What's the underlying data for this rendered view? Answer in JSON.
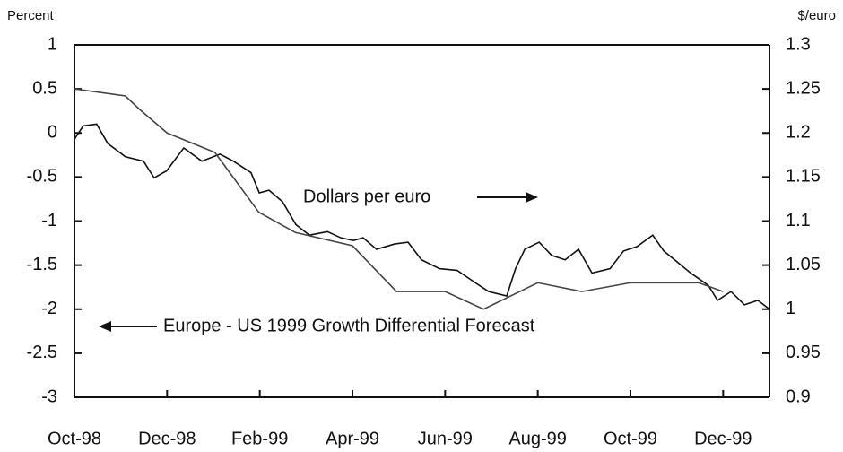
{
  "chart_data": {
    "type": "line",
    "y_label": "Percent",
    "y2_label": "$/euro",
    "xlim": [
      0,
      15
    ],
    "xticks": [
      {
        "value": 0,
        "label": "Oct-98"
      },
      {
        "value": 2,
        "label": "Dec-98"
      },
      {
        "value": 4,
        "label": "Feb-99"
      },
      {
        "value": 6,
        "label": "Apr-99"
      },
      {
        "value": 8,
        "label": "Jun-99"
      },
      {
        "value": 10,
        "label": "Aug-99"
      },
      {
        "value": 12,
        "label": "Oct-99"
      },
      {
        "value": 14,
        "label": "Dec-99"
      }
    ],
    "ylim": [
      -3,
      1
    ],
    "yticks": [
      1,
      0.5,
      0,
      -0.5,
      -1,
      -1.5,
      -2,
      -2.5,
      -3
    ],
    "y2lim": [
      0.9,
      1.3
    ],
    "y2ticks": [
      1.3,
      1.25,
      1.2,
      1.15,
      1.1,
      1.05,
      1,
      0.95,
      0.9
    ],
    "annotations": [
      {
        "text": "Dollars per euro",
        "arrow": "right"
      },
      {
        "text": "Europe - US 1999 Growth Differential Forecast",
        "arrow": "left"
      }
    ],
    "series": [
      {
        "name": "Dollars per euro",
        "color": "#111111",
        "axis": "y2",
        "x": [
          0,
          0.19,
          0.48,
          0.72,
          1.1,
          1.49,
          1.72,
          1.99,
          2.36,
          2.75,
          3.14,
          3.43,
          3.81,
          3.99,
          4.2,
          4.49,
          4.78,
          5.07,
          5.46,
          5.75,
          6.02,
          6.23,
          6.52,
          6.91,
          7.2,
          7.49,
          7.88,
          8.26,
          8.65,
          8.94,
          9.33,
          9.52,
          9.72,
          10.03,
          10.3,
          10.59,
          10.88,
          11.17,
          11.56,
          11.85,
          12.14,
          12.48,
          12.72,
          13.0,
          13.3,
          13.68,
          13.88,
          14.17,
          14.46,
          14.75,
          15.0
        ],
        "values": [
          1.193,
          1.208,
          1.21,
          1.188,
          1.173,
          1.168,
          1.149,
          1.157,
          1.183,
          1.168,
          1.176,
          1.168,
          1.155,
          1.132,
          1.135,
          1.122,
          1.096,
          1.084,
          1.088,
          1.081,
          1.078,
          1.081,
          1.068,
          1.074,
          1.076,
          1.056,
          1.046,
          1.044,
          1.03,
          1.02,
          1.015,
          1.046,
          1.068,
          1.076,
          1.061,
          1.056,
          1.068,
          1.041,
          1.046,
          1.066,
          1.071,
          1.084,
          1.066,
          1.054,
          1.041,
          1.027,
          1.01,
          1.02,
          1.005,
          1.01,
          1.0
        ]
      },
      {
        "name": "Europe - US 1999 Growth Differential Forecast",
        "color": "#444444",
        "axis": "y",
        "x": [
          0,
          1.1,
          1.4,
          2,
          3.03,
          3.98,
          4.77,
          6.0,
          6.95,
          8.0,
          8.83,
          10,
          10.95,
          12,
          13.47,
          14
        ],
        "values": [
          0.5,
          0.42,
          0.27,
          0.0,
          -0.22,
          -0.9,
          -1.13,
          -1.28,
          -1.8,
          -1.8,
          -2.0,
          -1.7,
          -1.8,
          -1.7,
          -1.7,
          -1.8
        ]
      }
    ]
  }
}
